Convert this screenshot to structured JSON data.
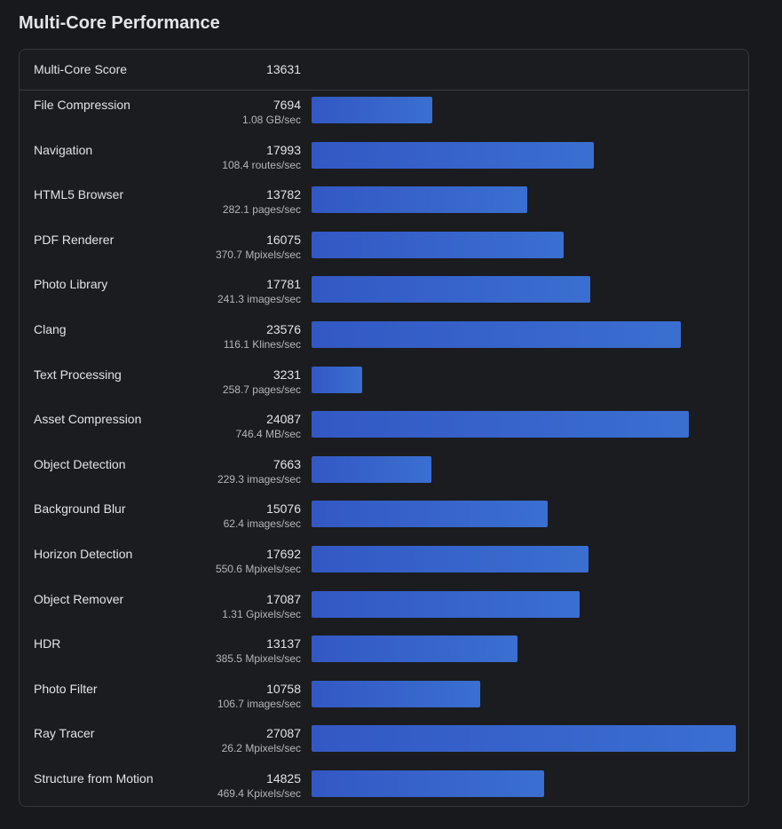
{
  "header": {
    "title": "Multi-Core Performance"
  },
  "summary": {
    "label": "Multi-Core Score",
    "value": "13631"
  },
  "max_score": 27087,
  "benchmarks": [
    {
      "name": "File Compression",
      "score": "7694",
      "rate": "1.08 GB/sec",
      "value": 7694
    },
    {
      "name": "Navigation",
      "score": "17993",
      "rate": "108.4 routes/sec",
      "value": 17993
    },
    {
      "name": "HTML5 Browser",
      "score": "13782",
      "rate": "282.1 pages/sec",
      "value": 13782
    },
    {
      "name": "PDF Renderer",
      "score": "16075",
      "rate": "370.7 Mpixels/sec",
      "value": 16075
    },
    {
      "name": "Photo Library",
      "score": "17781",
      "rate": "241.3 images/sec",
      "value": 17781
    },
    {
      "name": "Clang",
      "score": "23576",
      "rate": "116.1 Klines/sec",
      "value": 23576
    },
    {
      "name": "Text Processing",
      "score": "3231",
      "rate": "258.7 pages/sec",
      "value": 3231
    },
    {
      "name": "Asset Compression",
      "score": "24087",
      "rate": "746.4 MB/sec",
      "value": 24087
    },
    {
      "name": "Object Detection",
      "score": "7663",
      "rate": "229.3 images/sec",
      "value": 7663
    },
    {
      "name": "Background Blur",
      "score": "15076",
      "rate": "62.4 images/sec",
      "value": 15076
    },
    {
      "name": "Horizon Detection",
      "score": "17692",
      "rate": "550.6 Mpixels/sec",
      "value": 17692
    },
    {
      "name": "Object Remover",
      "score": "17087",
      "rate": "1.31 Gpixels/sec",
      "value": 17087
    },
    {
      "name": "HDR",
      "score": "13137",
      "rate": "385.5 Mpixels/sec",
      "value": 13137
    },
    {
      "name": "Photo Filter",
      "score": "10758",
      "rate": "106.7 images/sec",
      "value": 10758
    },
    {
      "name": "Ray Tracer",
      "score": "27087",
      "rate": "26.2 Mpixels/sec",
      "value": 27087
    },
    {
      "name": "Structure from Motion",
      "score": "14825",
      "rate": "469.4 Kpixels/sec",
      "value": 14825
    }
  ],
  "colors": {
    "bar": "#3358c4",
    "background": "#18191c"
  }
}
